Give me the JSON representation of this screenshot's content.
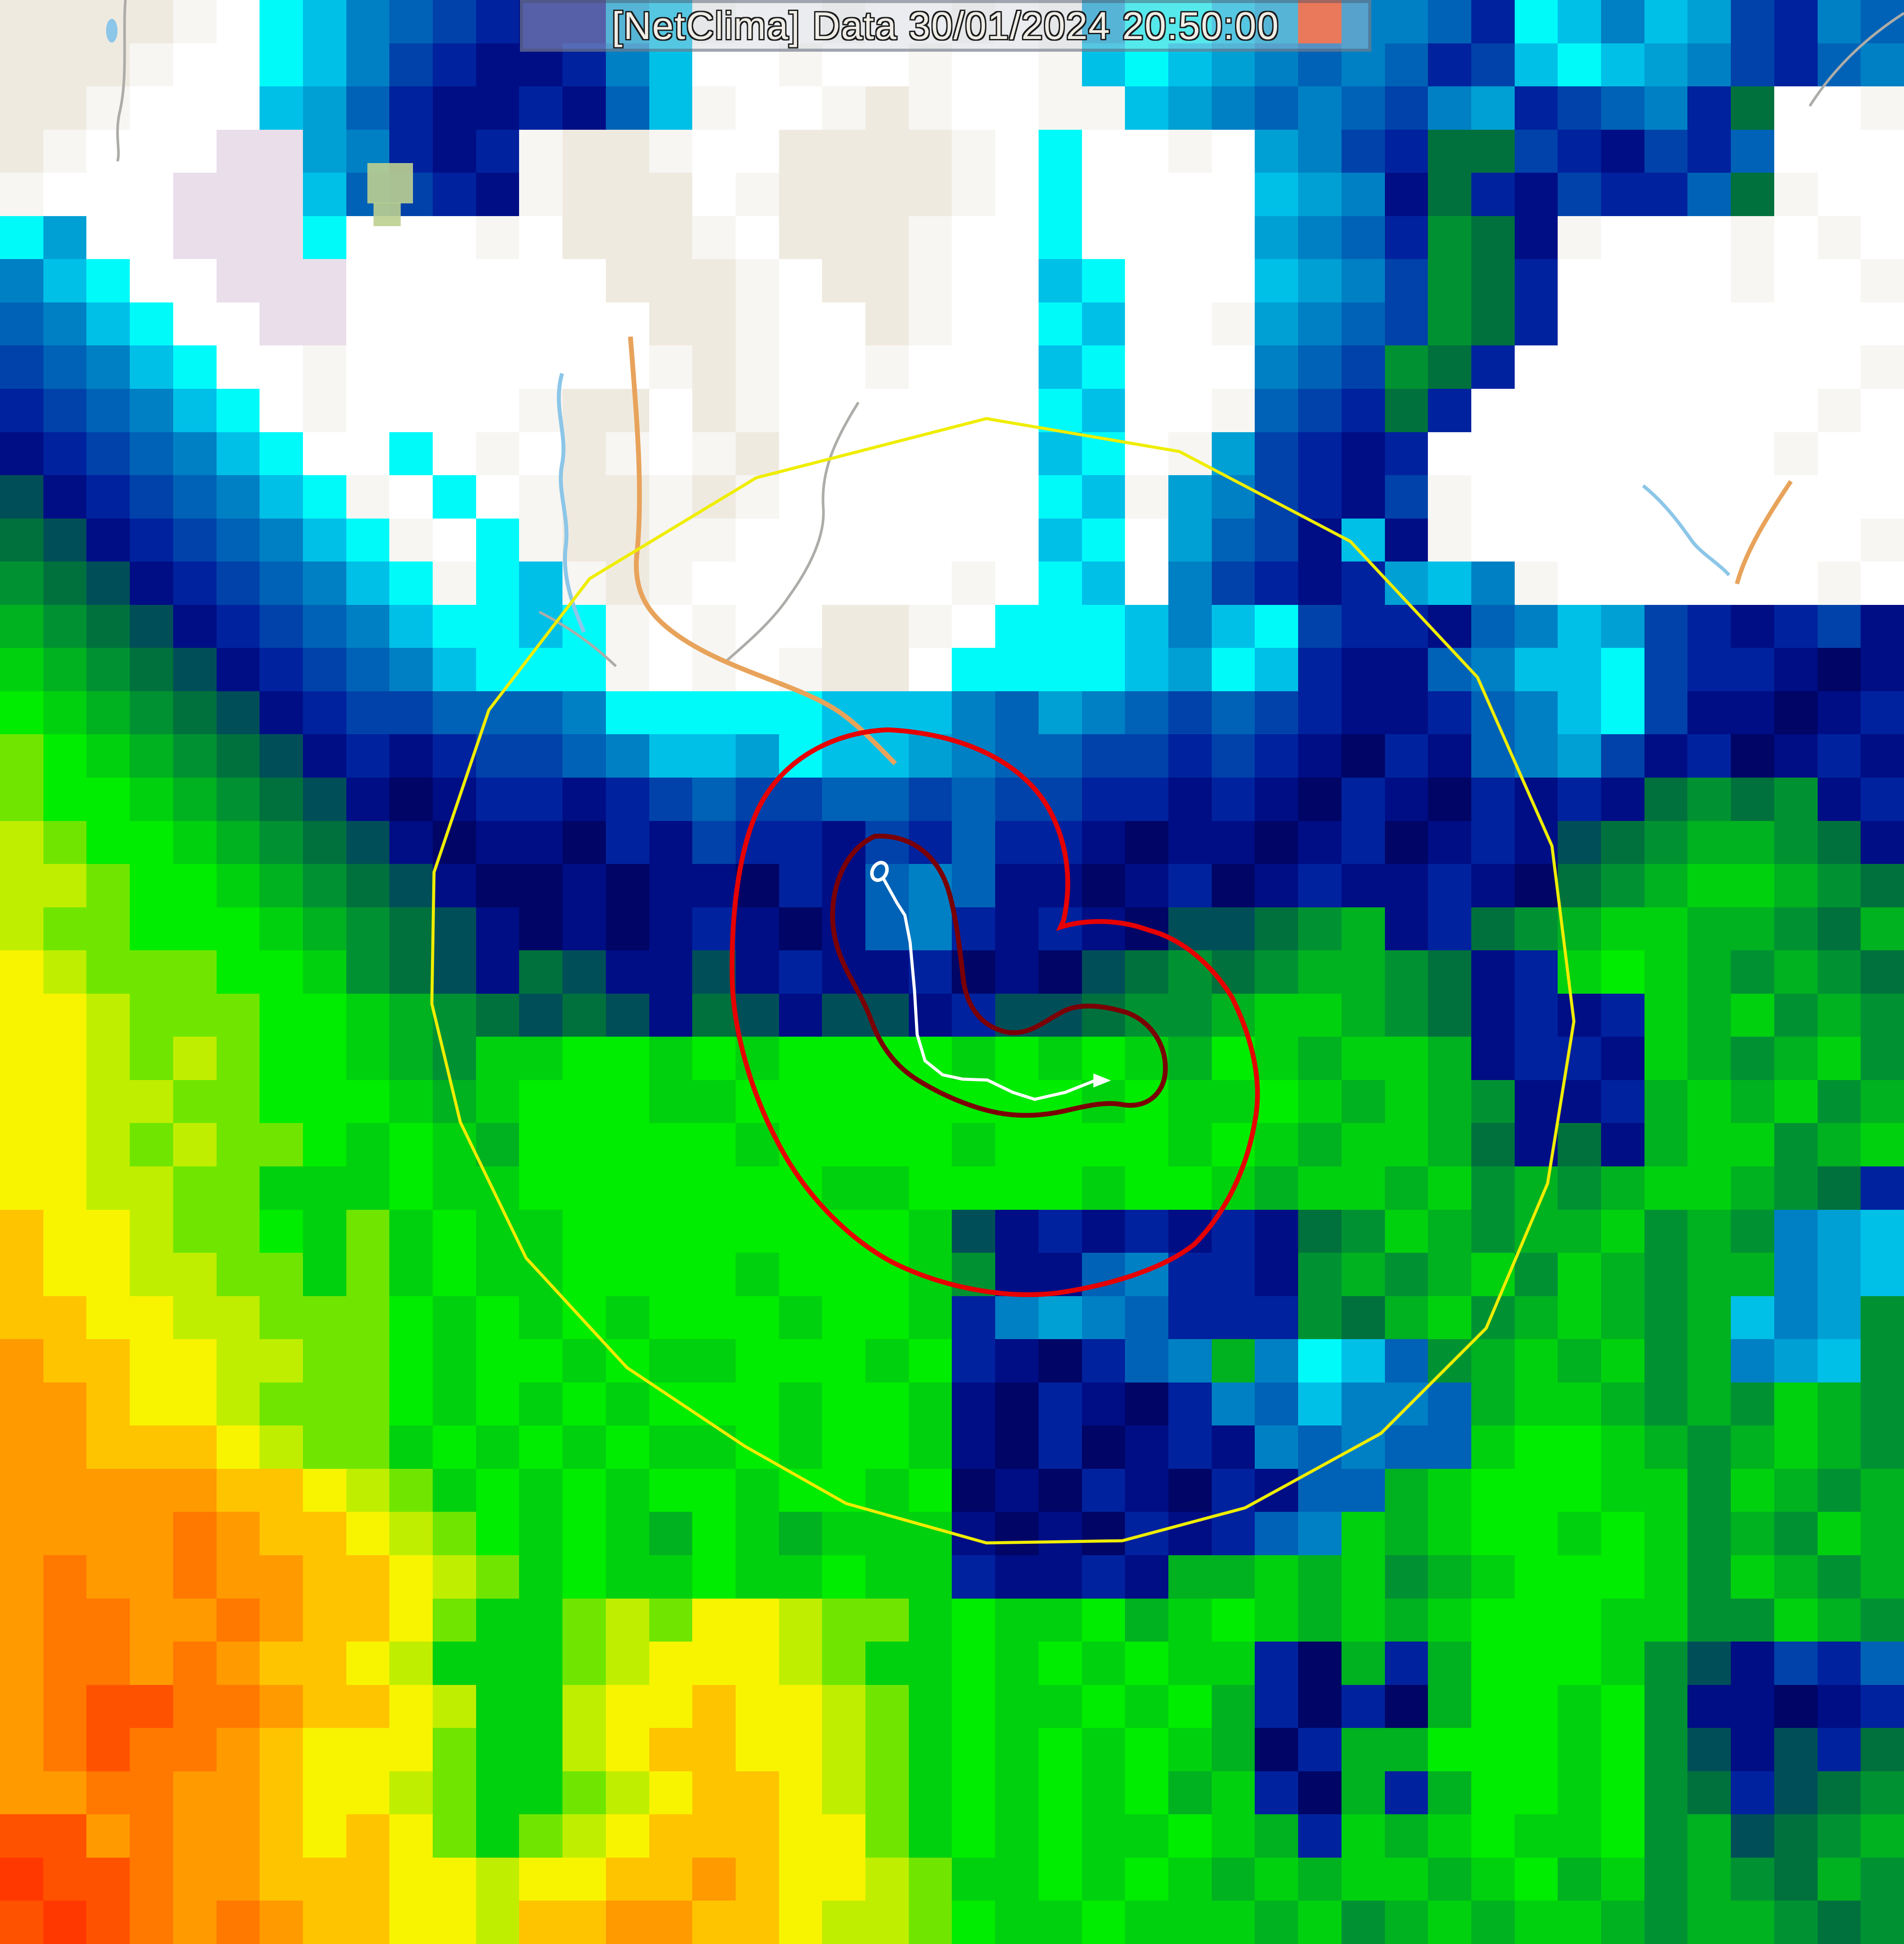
{
  "title_bar": {
    "text": "[NetClima] Data 30/01/2024 20:50:00",
    "source": "[NetClima]",
    "label": "Data",
    "date": "30/01/2024",
    "time": "20:50:00"
  },
  "map": {
    "cols": 44,
    "rows_count": 45,
    "palette": {
      ".": "#FFFFFF",
      ",": "#F7F6F3",
      "m": "#EFEAE0",
      "p": "#E9DEE9",
      "c": "#00FAFA",
      "t": "#00C0E8",
      "u": "#00A0D4",
      "b": "#0080C4",
      "d": "#0062B6",
      "n": "#0042AA",
      "N": "#00229E",
      "K": "#000E85",
      "X": "#000566",
      "T": "#004F58",
      "G": "#00713C",
      "g": "#009232",
      "e": "#00B120",
      "v": "#00D10E",
      "V": "#00EC00",
      "y": "#70E600",
      "Y": "#C0EE00",
      "F": "#F8F400",
      "A": "#FFC400",
      "O": "#FF9A00",
      "o": "#FF7800",
      "R": "#FF5200",
      "r": "#FF3800"
    },
    "palette_legend": {
      ".": "cloud-white",
      ",": "cloud-offwhite",
      "m": "basemap-land",
      "p": "basemap-urban",
      "c": "cyan",
      "t": "light-teal",
      "u": "teal",
      "b": "azure",
      "d": "blue",
      "n": "medium-navy",
      "N": "navy",
      "K": "dark-navy",
      "X": "deepest-navy",
      "T": "dark-teal",
      "G": "dark-green",
      "g": "forest-green",
      "e": "mid-green",
      "v": "bright-green",
      "V": "vivid-green",
      "y": "chartreuse",
      "Y": "yellow-green",
      "F": "yellow",
      "A": "amber",
      "O": "orange",
      "o": "deep-orange",
      "R": "red-orange",
      "r": "deepest-red-orange"
    },
    "rows": [
      "mmmm,.ctbdnNKKut,..,..,.,uccturbbdNctbtunNbd",
      "mmm,..ctbnNKKNbt..,..,..,tctubdbdNntctubnNdb",
      "mm,...tudNKKNKdt,..,m,..,,tubdbdnbuNndbNG..,",
      "m,...ppubNKN,mm,..mmmm,.c..,.ubnNGGnNKnNd...",
      ",...ppptdnNK,mmm.,mmmm,.c....tubKGNKnNNdG,..",
      "cu..pppc...,.mmm,.mmm,..c....ubdNgGK,...,.,.",
      "btc..ppp......mmm,.mm,..tc...tubngGN....,..,",
      "dbtc..pp.......mm,..m,..ct..,ubdngGN........",
      "ndbtc..,.......,m,..,...tc...bdngGN........,",
      "Nndbtc.,....,mm.m,......ct..,dnNGN........,.",
      "KNndbtc..c.,.m,.,m......tc.,unNKN........,..",
      "TKNndbtc,.c.,mm,m,......ct,ubnNKn,..........",
      "GTKNndbtc,.c,mm,,.......tc.udnKtK,.........,",
      "gGTKNndbtc,ct,m,......,.ct.bnNKNutb,......,.",
      "egGTKNndbtcctc,.,..mm,.ccctbtcnNNKdbtunNKNnK",
      "vegGTKNndbtccc,.,.,mm.cccctuctNKKdbttcnNNKXK",
      "VvegGTKNnndddbccccctttbdubdndnNKKNdbtcnKKXKN",
      "yVvegGTKNKNnndbttucttubddnnNnNKXNKdbunKNXKNK",
      "yVVvegGTKXKNNKNndnnddndnnNNKNKXNKXNKNKGgGgKN",
      "YyVVvegGTKXKKXNKnNNKnNdNNKXKKXKNXKNKTGgeegGK",
      "YYyVVvegGTKXXKXKKXNKdbdKKXKNXKNKKNKXGgevvegG",
      "YyyVVVvegGTKXKXKNKXKdbNKNKXTTGgeKNGgevveegGe",
      "FYyyyVVvgGTKGTKKTKNKKNXKXTGgGgeegGKNvVvegegG",
      "FFYyyyVVvegGTGTKGTKTTKNTTGggevvegGKNKNvevgeg",
      "FFYyYyVVvegvvVVvVvVVVVvVvVveVvevveKNNKvegevg",
      "FFYYyyVVVvevVVVvvVVVVVVVVvVvvVvevegKKNevevge",
      "FFYyYyyVvVveVVVVVvVVVVvVVVVvVvevveGKGKevvgev",
      "FFYYyyvvvVvvVVVVVVVvvVVVVvVVvevvevgegevvegGN",
      "AFFYyyVvyvVvvVVVVVVVVvTKNKNKNKGgvegeevgegbut",
      "AFFYYyyvyvVvvVVVVvVVVvgKKdbNNKgegevgvegeebut",
      "AAFFYYyyyVvVvVvVVVvVVvNbubdNNNgGevgevegetbug",
      "OAAFFYYyyVvVVvVvvVVVvVNKXNdbebctdgevevgebutg",
      "OOAFFYyyyVvVvVvVVVvVVvKXNKXNbdtbbdevvegegveg",
      "OOAAAFYyyvVvVvVvvVvVVvKXNXKNKbdbddvVVvegeveg",
      "OOOOOAAFYyvVvVvVVvVVvVXKXNKXNKddevVVVvvgvege",
      "OOOOoOAAFYyVvVveVvevvvKXKXNKNdbvevVVvVvgegve",
      "OoOOoOOAAFYyvVvvVvvVvvNKKNKeevevgevVVVvgvege",
      "OooOOoOAAFyvvyYyFFYyyvVvvVevVvevevVVVvvggveg",
      "OooOoOAAFYvvvyYFFFYyvvVvVvVvvNXeNeVVVvgTKnNd",
      "OoRRooOAAFYvvYFFAFFYyvVvvVvVeNXNXeVVvVgKKXKN",
      "OoRooOAFFFyvvYFAAFFYyvVvVvVveXNeeVVVvVgTKTNG",
      "OOooOOAFFYyvvyYFAAFYyvVvVvVevNXeNeVVvVgGNTGg",
      "RROoOOAFAFyvyYFAAAFFyvVvVvvVveNvevVvvVgeTGge",
      "rRRoOOAAAFFYFFAAOAFFYyvvVvVvevevvevVevgegGeg",
      "RrRoOoOAAFFYAAOOAAFYYyVvvVvvvevgevevvegeegGg"
    ]
  },
  "overlays": {
    "range_ring": {
      "color": "#EFED00"
    },
    "outer_contour": {
      "color": "#E60000"
    },
    "inner_contour": {
      "color": "#7A0005"
    },
    "storm_track": {
      "color": "#FFFFFF"
    },
    "basemap": {
      "road_primary": "#E8A35B",
      "road_minor": "#ADACA8",
      "water": "#8CC6E8",
      "vegetation": "#BCCF90"
    }
  }
}
